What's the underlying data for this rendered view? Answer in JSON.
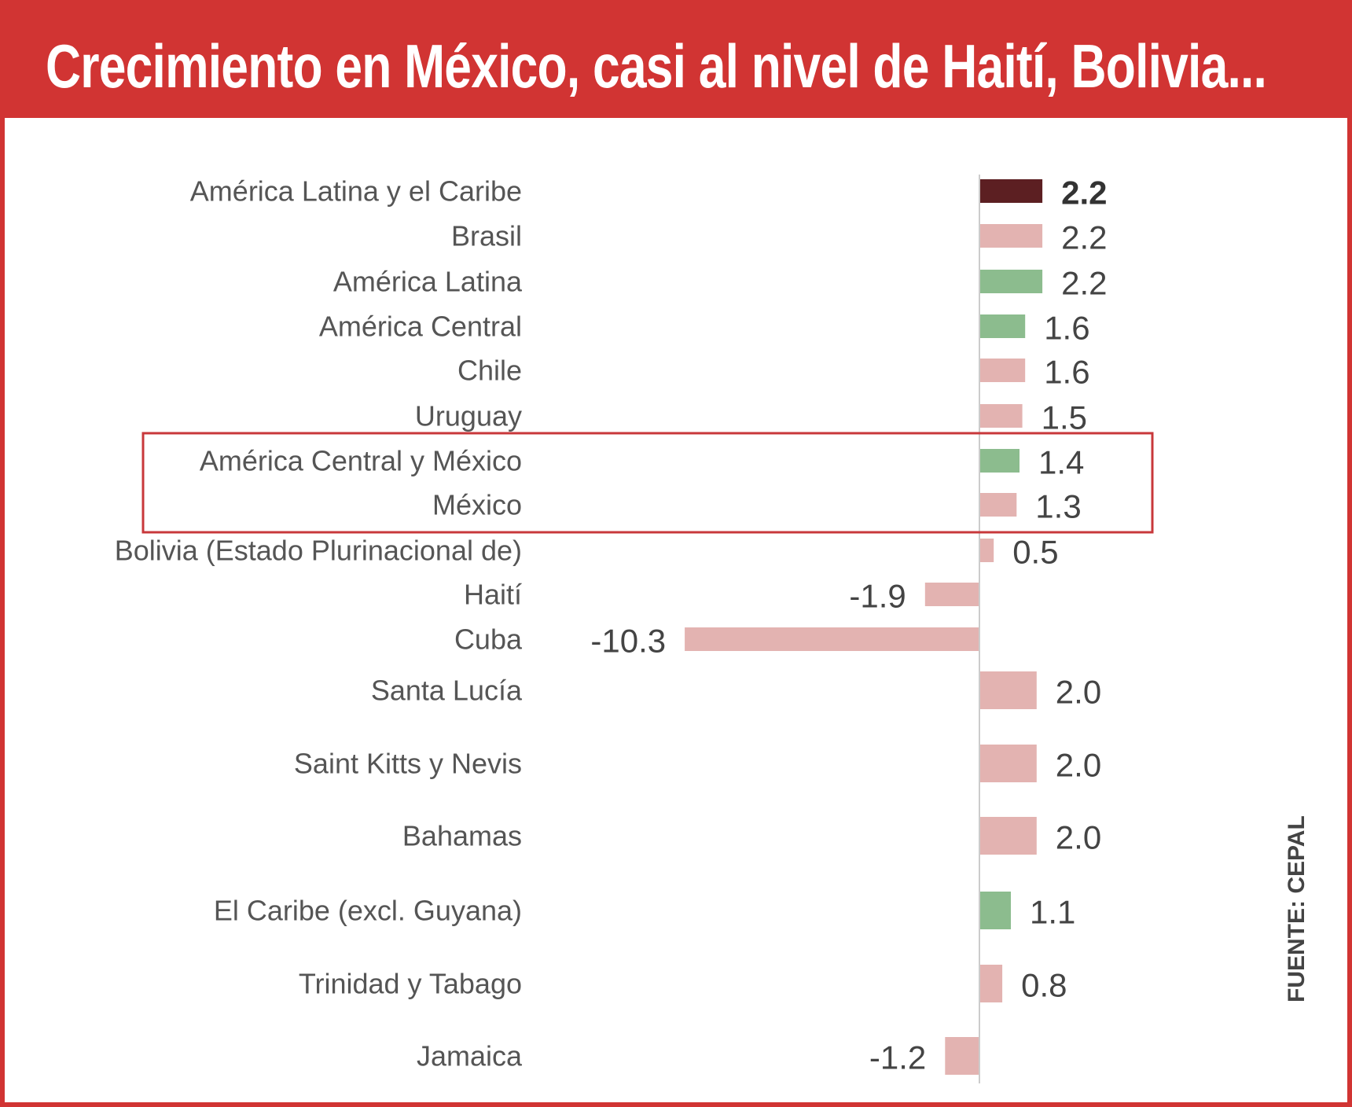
{
  "header": {
    "title": "Crecimiento en México, casi al nivel de Haití, Bolivia..."
  },
  "source": "FUENTE: CEPAL",
  "colors": {
    "frame": "#d13433",
    "bar_pink": "#e3b3b1",
    "bar_green": "#8cbc8e",
    "bar_dark": "#5c1f22",
    "highlight_box": "#c8383b",
    "label": "#555555",
    "axis": "#cccccc"
  },
  "chart_data": {
    "type": "bar",
    "orientation": "horizontal",
    "title": "Crecimiento en México, casi al nivel de Haití, Bolivia...",
    "xlabel": "",
    "ylabel": "",
    "xlim": [
      -10.3,
      2.2
    ],
    "grid": false,
    "legend": "none",
    "categories": [
      "América Latina y el Caribe",
      "Brasil",
      "América Latina",
      "América Central",
      "Chile",
      "Uruguay",
      "América Central y México",
      "México",
      "Bolivia (Estado Plurinacional de)",
      "Haití",
      "Cuba",
      "Santa Lucía",
      "Saint Kitts y Nevis",
      "Bahamas",
      "El Caribe (excl. Guyana)",
      "Trinidad y Tabago",
      "Jamaica"
    ],
    "values": [
      2.2,
      2.2,
      2.2,
      1.6,
      1.6,
      1.5,
      1.4,
      1.3,
      0.5,
      -1.9,
      -10.3,
      2.0,
      2.0,
      2.0,
      1.1,
      0.8,
      -1.2
    ],
    "value_labels": [
      "2.2",
      "2.2",
      "2.2",
      "1.6",
      "1.6",
      "1.5",
      "1.4",
      "1.3",
      "0.5",
      "-1.9",
      "-10.3",
      "2.0",
      "2.0",
      "2.0",
      "1.1",
      "0.8",
      "-1.2"
    ],
    "bar_colors": [
      "dark",
      "pink",
      "green",
      "green",
      "pink",
      "pink",
      "green",
      "pink",
      "pink",
      "pink",
      "pink",
      "pink",
      "pink",
      "pink",
      "green",
      "pink",
      "pink"
    ],
    "bold_categories": [
      "América Latina y el Caribe"
    ],
    "highlighted_categories": [
      "América Central y México",
      "México"
    ]
  }
}
